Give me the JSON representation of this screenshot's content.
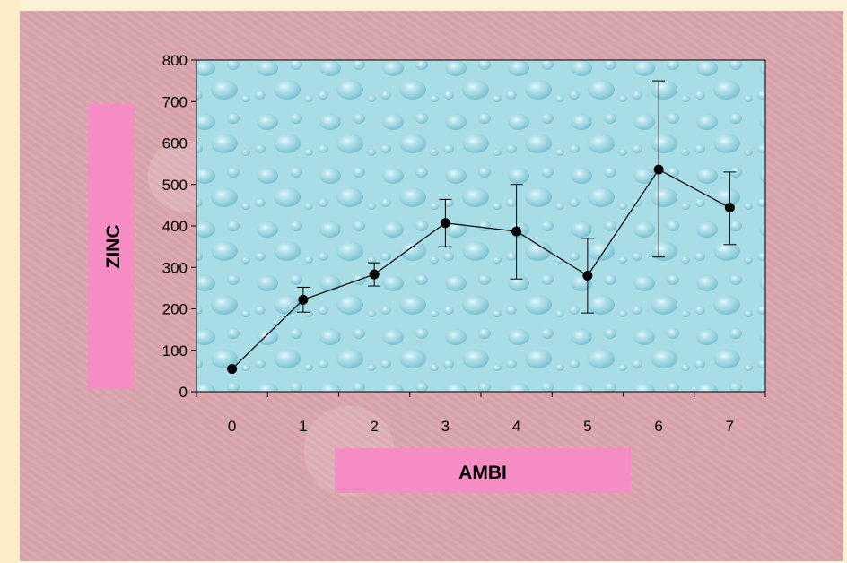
{
  "chart_data": {
    "type": "line",
    "xlabel": "AMBI",
    "ylabel": "ZINC",
    "categories": [
      "0",
      "1",
      "2",
      "3",
      "4",
      "5",
      "6",
      "7"
    ],
    "ylim": [
      0,
      800
    ],
    "yticks": [
      0,
      100,
      200,
      300,
      400,
      500,
      600,
      700,
      800
    ],
    "series": [
      {
        "values": [
          55,
          222,
          283,
          407,
          387,
          280,
          536,
          444
        ],
        "err_low": [
          55,
          192,
          255,
          350,
          272,
          190,
          325,
          355
        ],
        "err_high": [
          55,
          252,
          311,
          464,
          500,
          370,
          750,
          530
        ]
      }
    ],
    "grid": false,
    "colors": {
      "plot_bg": "#a9dde6",
      "label_box": "#f58cc3",
      "line": "#000000"
    }
  }
}
